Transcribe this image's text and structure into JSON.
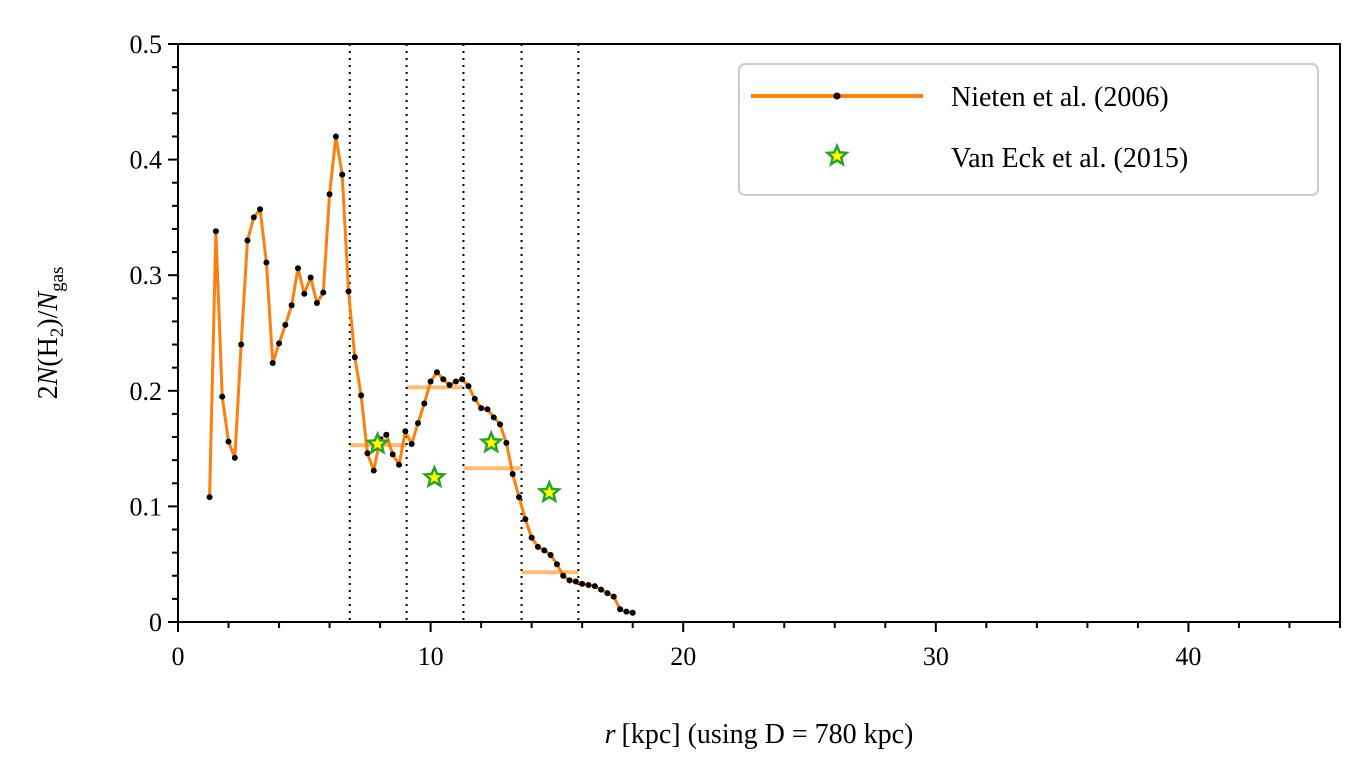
{
  "chart_data": {
    "type": "line",
    "xlim": [
      0,
      46
    ],
    "ylim": [
      0,
      0.5
    ],
    "x_ticks": [
      0,
      10,
      20,
      30,
      40
    ],
    "x_tick_labels": [
      "0",
      "10",
      "20",
      "30",
      "40"
    ],
    "y_ticks": [
      0,
      0.1,
      0.2,
      0.3,
      0.4,
      0.5
    ],
    "y_tick_labels": [
      "0",
      "0.1",
      "0.2",
      "0.3",
      "0.4",
      "0.5"
    ],
    "xlabel": {
      "var": "r",
      "unit": "[kpc] (using D = 780 kpc)"
    },
    "ylabel": {
      "prefix": "2",
      "N": "N",
      "open": "(H",
      "sub2": "2",
      "close": ")/",
      "N2": "N",
      "sub_gas": "gas"
    },
    "vertical_lines_x": [
      6.8,
      9.05,
      11.3,
      13.6,
      15.85
    ],
    "series": [
      {
        "name": "Nieten et al. (2006)",
        "color": "#ff7f0e",
        "marker_color": "#000000",
        "x": [
          1.25,
          1.5,
          1.75,
          2.0,
          2.25,
          2.5,
          2.75,
          3.0,
          3.25,
          3.5,
          3.75,
          4.0,
          4.25,
          4.5,
          4.75,
          5.0,
          5.25,
          5.5,
          5.75,
          6.0,
          6.25,
          6.5,
          6.75,
          7.0,
          7.25,
          7.5,
          7.75,
          8.0,
          8.25,
          8.5,
          8.75,
          9.0,
          9.25,
          9.5,
          9.75,
          10.0,
          10.25,
          10.5,
          10.75,
          11.0,
          11.25,
          11.5,
          11.75,
          12.0,
          12.25,
          12.5,
          12.75,
          13.0,
          13.25,
          13.5,
          13.75,
          14.0,
          14.25,
          14.5,
          14.75,
          15.0,
          15.25,
          15.5,
          15.75,
          16.0,
          16.25,
          16.5,
          16.75,
          17.0,
          17.25,
          17.5,
          17.75,
          18.0
        ],
        "y": [
          0.108,
          0.338,
          0.195,
          0.156,
          0.142,
          0.24,
          0.33,
          0.35,
          0.357,
          0.311,
          0.224,
          0.241,
          0.257,
          0.274,
          0.306,
          0.284,
          0.298,
          0.276,
          0.285,
          0.37,
          0.42,
          0.387,
          0.286,
          0.229,
          0.196,
          0.146,
          0.131,
          0.158,
          0.162,
          0.145,
          0.136,
          0.165,
          0.154,
          0.172,
          0.189,
          0.208,
          0.216,
          0.21,
          0.205,
          0.208,
          0.21,
          0.204,
          0.193,
          0.185,
          0.184,
          0.177,
          0.171,
          0.155,
          0.128,
          0.108,
          0.089,
          0.073,
          0.065,
          0.062,
          0.058,
          0.05,
          0.04,
          0.036,
          0.035,
          0.033,
          0.032,
          0.031,
          0.028,
          0.025,
          0.022,
          0.011,
          0.009,
          0.008
        ]
      },
      {
        "name": "Van Eck et al. (2015)",
        "color": "#2ca02c",
        "fill": "#ffff00",
        "marker": "star",
        "x": [
          7.9,
          10.15,
          12.4,
          14.7
        ],
        "y": [
          0.154,
          0.125,
          0.155,
          0.112
        ]
      }
    ],
    "binned_averages": {
      "color": "#ffbb78",
      "segments": [
        {
          "x0": 6.8,
          "x1": 9.05,
          "y": 0.153
        },
        {
          "x0": 9.05,
          "x1": 11.3,
          "y": 0.203
        },
        {
          "x0": 11.3,
          "x1": 13.6,
          "y": 0.133
        },
        {
          "x0": 13.6,
          "x1": 15.85,
          "y": 0.043
        }
      ]
    },
    "legend_position": "top-right"
  }
}
